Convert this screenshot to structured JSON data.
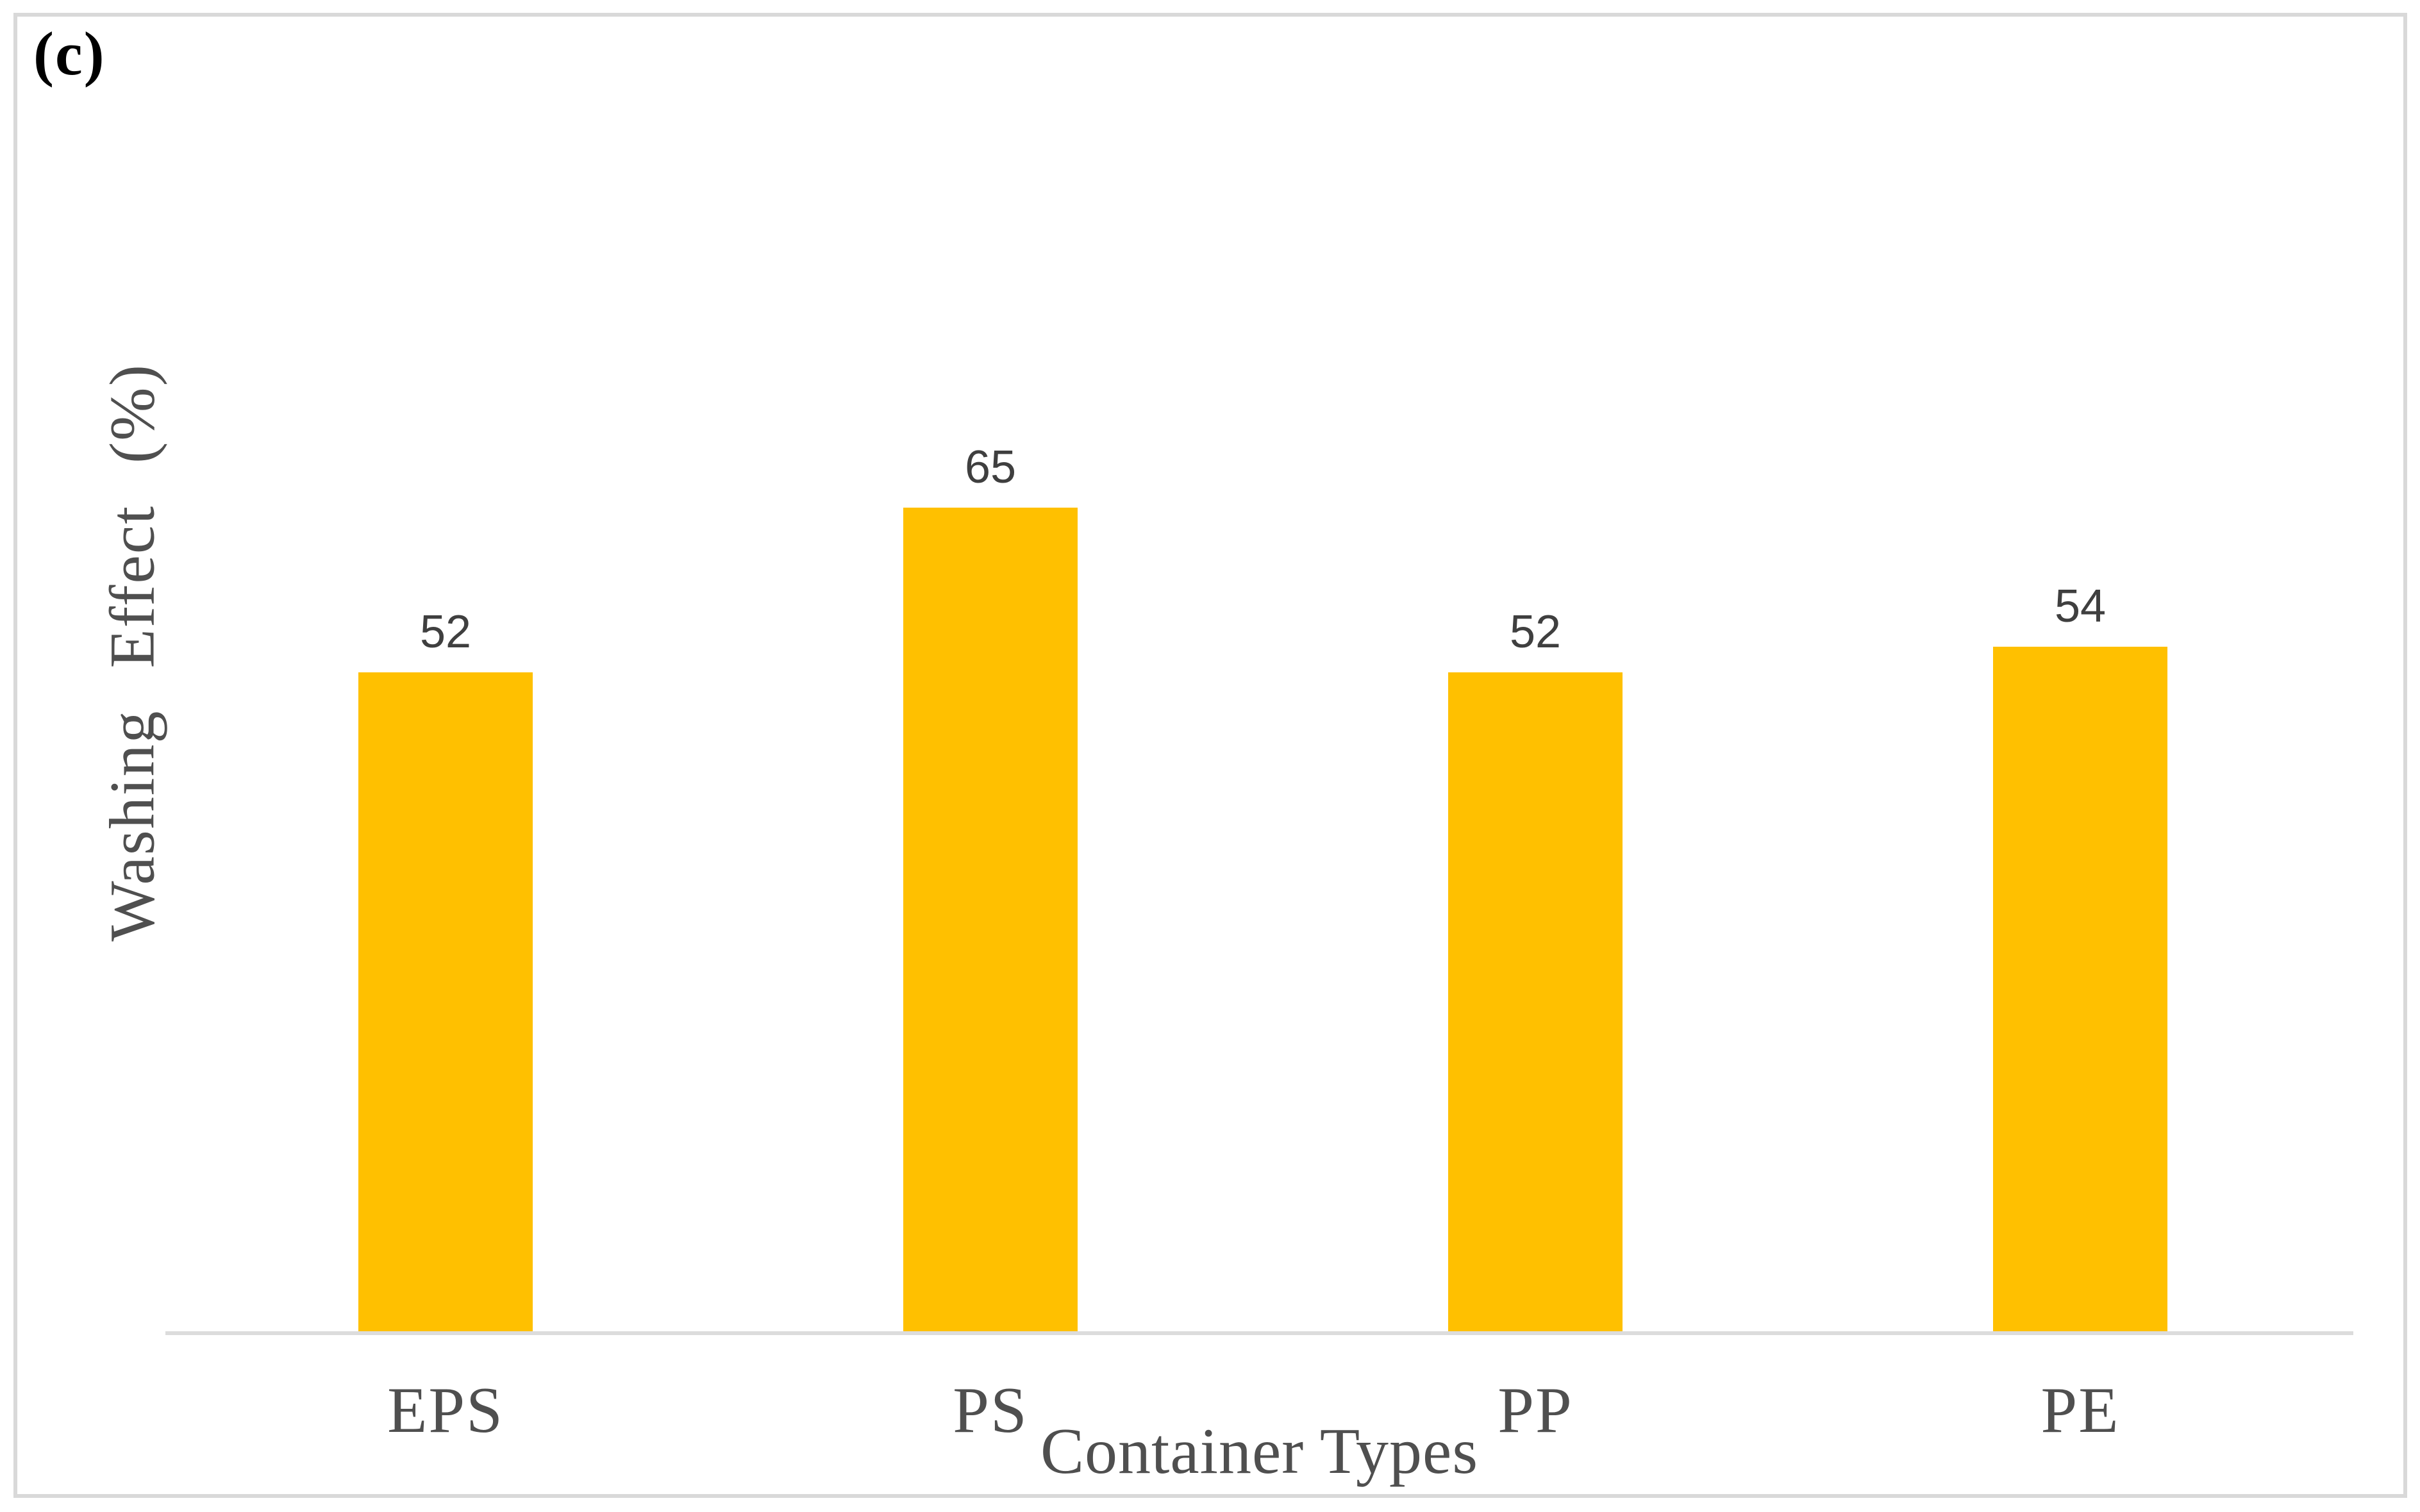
{
  "panel_label": "(c)",
  "chart_data": {
    "type": "bar",
    "title": "",
    "categories": [
      "EPS",
      "PS",
      "PP",
      "PE"
    ],
    "values": [
      52,
      65,
      52,
      54
    ],
    "xlabel": "Container Types",
    "ylabel": "Washing Effect (%)",
    "ylim": [
      0,
      105
    ],
    "grid": false,
    "legend_position": "none",
    "bar_color": "#FFC000",
    "axis_line_color": "#DCDCDC",
    "tick_label_color": "#4F4F4F",
    "value_label_color": "#3F3F3F"
  }
}
